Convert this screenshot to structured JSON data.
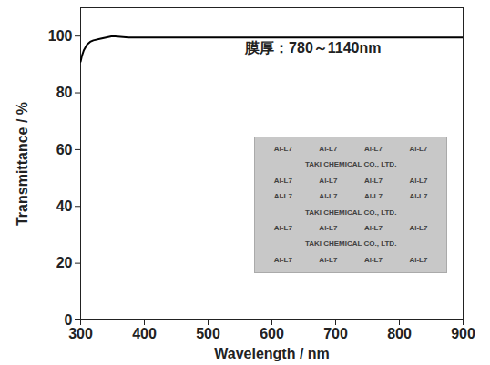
{
  "chart_data": {
    "type": "line",
    "xlabel": "Wavelength / nm",
    "ylabel": "Transmittance / %",
    "x": [
      300,
      302,
      305,
      310,
      315,
      320,
      330,
      340,
      350,
      375,
      400,
      450,
      500,
      550,
      600,
      650,
      700,
      750,
      800,
      850,
      900
    ],
    "values": [
      91,
      93,
      95,
      97,
      98,
      98.5,
      99,
      99.5,
      100,
      99.5,
      99.5,
      99.5,
      99.5,
      99.5,
      99.5,
      99.5,
      99.5,
      99.5,
      99.5,
      99.5,
      99.5
    ],
    "color": "#000000",
    "xlim": [
      300,
      900
    ],
    "xticks": [
      300,
      400,
      500,
      600,
      700,
      800,
      900
    ],
    "ylim": [
      0,
      110
    ],
    "yticks": [
      0,
      20,
      40,
      60,
      80,
      100
    ],
    "grid": false,
    "annotations": [
      {
        "text": "膜厚：780～1140nm"
      }
    ],
    "inset": {
      "rows": [
        [
          "Al-L7",
          "Al-L7",
          "Al-L7",
          "Al-L7"
        ],
        [
          "TAKI CHEMICAL CO., LTD."
        ],
        [
          "Al-L7",
          "Al-L7",
          "Al-L7",
          "Al-L7"
        ],
        [
          "Al-L7",
          "Al-L7",
          "Al-L7",
          "Al-L7"
        ],
        [
          "TAKI CHEMICAL CO., LTD."
        ],
        [
          "Al-L7",
          "Al-L7",
          "Al-L7",
          "Al-L7"
        ],
        [
          "TAKI CHEMICAL CO., LTD."
        ],
        [
          "Al-L7",
          "Al-L7",
          "Al-L7",
          "Al-L7"
        ]
      ]
    }
  }
}
